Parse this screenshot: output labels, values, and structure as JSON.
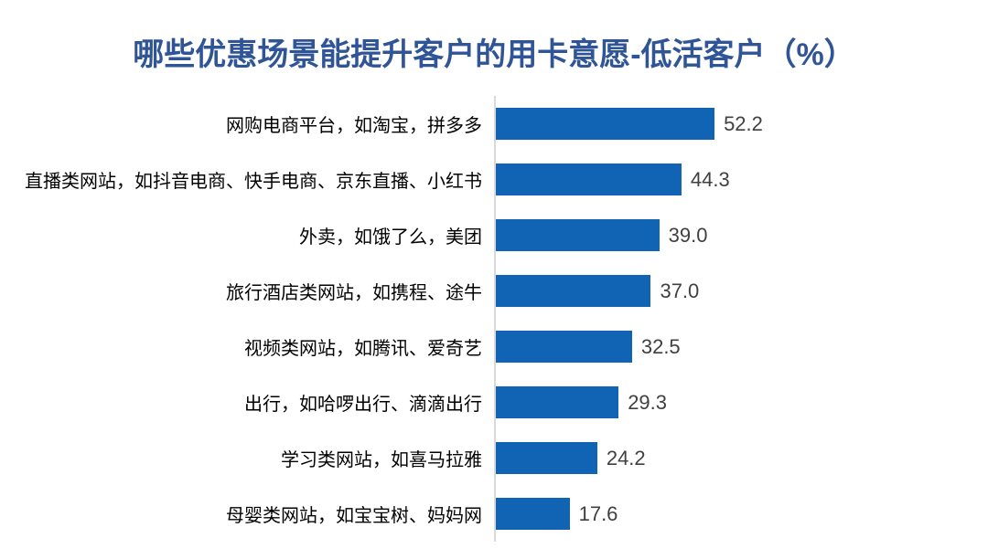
{
  "title": "哪些优惠场景能提升客户的用卡意愿-低活客户（%）",
  "chart_data": {
    "type": "bar",
    "orientation": "horizontal",
    "title": "哪些优惠场景能提升客户的用卡意愿-低活客户（%）",
    "xlabel": "",
    "ylabel": "",
    "grid": false,
    "legend": false,
    "sort_order": "descending",
    "categories": [
      "网购电商平台，如淘宝，拼多多",
      "直播类网站，如抖音电商、快手电商、京东直播、小红书",
      "外卖，如饿了么，美团",
      "旅行酒店类网站，如携程、途牛",
      "视频类网站，如腾讯、爱奇艺",
      "出行，如哈啰出行、滴滴出行",
      "学习类网站，如喜马拉雅",
      "母婴类网站，如宝宝树、妈妈网"
    ],
    "values": [
      52.2,
      44.3,
      39.0,
      37.0,
      32.5,
      29.3,
      24.2,
      17.6
    ],
    "value_labels": [
      "52.2",
      "44.3",
      "39.0",
      "37.0",
      "32.5",
      "29.3",
      "24.2",
      "17.6"
    ],
    "colors": {
      "bar": "#1164b4",
      "title": "#2f5597",
      "axis_line": "#d9d9d9",
      "category_text": "#000000",
      "value_text": "#404040",
      "background": "#ffffff"
    }
  }
}
